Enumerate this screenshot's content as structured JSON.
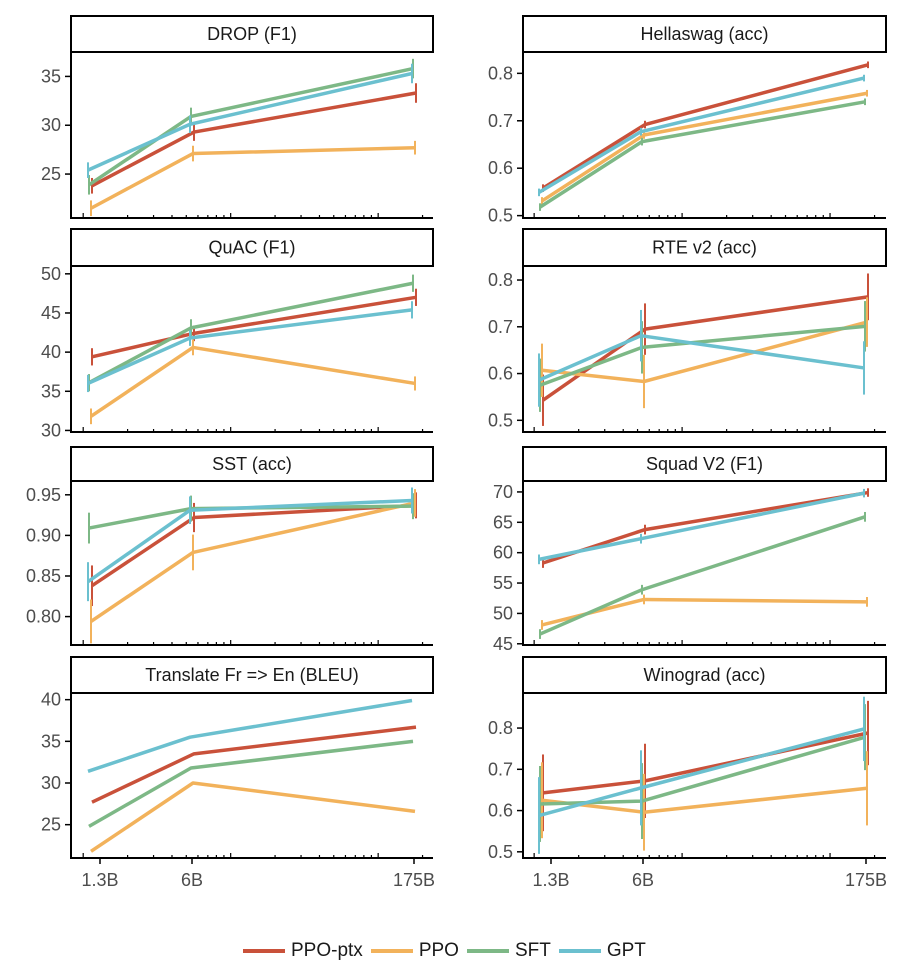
{
  "chart_data": {
    "type": "line",
    "layout": "facet-grid-4x2",
    "x_tick_labels": [
      "1.3B",
      "6B",
      "175B"
    ],
    "x_values": [
      1.3,
      6,
      175
    ],
    "x_scale": "log",
    "legend": {
      "position": "bottom",
      "entries": [
        {
          "name": "PPO-ptx",
          "color": "#c9513a"
        },
        {
          "name": "PPO",
          "color": "#f2b25b"
        },
        {
          "name": "SFT",
          "color": "#7db886"
        },
        {
          "name": "GPT",
          "color": "#6bc0cf"
        }
      ]
    },
    "panels": [
      {
        "title": "DROP (F1)",
        "ylim": [
          20.5,
          37.5
        ],
        "yticks": [
          25,
          30,
          35
        ],
        "ytick_labels": [
          "25",
          "30",
          "35"
        ],
        "series": [
          {
            "name": "PPO-ptx",
            "values": [
              23.8,
              29.3,
              33.3
            ],
            "err": [
              0.8,
              0.9,
              1.0
            ]
          },
          {
            "name": "PPO",
            "values": [
              21.5,
              27.1,
              27.7
            ],
            "err": [
              0.8,
              0.8,
              0.7
            ]
          },
          {
            "name": "SFT",
            "values": [
              23.9,
              30.9,
              35.8
            ],
            "err": [
              1.0,
              0.9,
              1.0
            ]
          },
          {
            "name": "GPT",
            "values": [
              25.4,
              30.1,
              35.3
            ],
            "err": [
              0.8,
              0.9,
              1.0
            ]
          }
        ]
      },
      {
        "title": "Hellaswag (acc)",
        "ylim": [
          0.495,
          0.845
        ],
        "yticks": [
          0.5,
          0.6,
          0.7,
          0.8
        ],
        "ytick_labels": [
          "0.5",
          "0.6",
          "0.7",
          "0.8"
        ],
        "series": [
          {
            "name": "PPO-ptx",
            "values": [
              0.558,
              0.692,
              0.818
            ],
            "err": [
              0.008,
              0.008,
              0.007
            ]
          },
          {
            "name": "PPO",
            "values": [
              0.531,
              0.67,
              0.758
            ],
            "err": [
              0.008,
              0.008,
              0.007
            ]
          },
          {
            "name": "SFT",
            "values": [
              0.518,
              0.656,
              0.74
            ],
            "err": [
              0.008,
              0.008,
              0.007
            ]
          },
          {
            "name": "GPT",
            "values": [
              0.549,
              0.677,
              0.79
            ],
            "err": [
              0.008,
              0.008,
              0.007
            ]
          }
        ]
      },
      {
        "title": "QuAC (F1)",
        "ylim": [
          29.8,
          51.0
        ],
        "yticks": [
          30,
          35,
          40,
          45,
          50
        ],
        "ytick_labels": [
          "30",
          "35",
          "40",
          "45",
          "50"
        ],
        "series": [
          {
            "name": "PPO-ptx",
            "values": [
              39.4,
              42.4,
              47.0
            ],
            "err": [
              1.1,
              1.0,
              1.1
            ]
          },
          {
            "name": "PPO",
            "values": [
              31.8,
              40.6,
              36.0
            ],
            "err": [
              1.0,
              1.0,
              0.9
            ]
          },
          {
            "name": "SFT",
            "values": [
              36.1,
              43.1,
              48.8
            ],
            "err": [
              1.1,
              1.1,
              1.1
            ]
          },
          {
            "name": "GPT",
            "values": [
              36.0,
              41.8,
              45.4
            ],
            "err": [
              1.1,
              1.0,
              1.1
            ]
          }
        ]
      },
      {
        "title": "RTE v2 (acc)",
        "ylim": [
          0.475,
          0.83
        ],
        "yticks": [
          0.5,
          0.6,
          0.7,
          0.8
        ],
        "ytick_labels": [
          "0.5",
          "0.6",
          "0.7",
          "0.8"
        ],
        "series": [
          {
            "name": "PPO-ptx",
            "values": [
              0.543,
              0.695,
              0.764
            ],
            "err": [
              0.055,
              0.055,
              0.05
            ]
          },
          {
            "name": "PPO",
            "values": [
              0.607,
              0.583,
              0.71
            ],
            "err": [
              0.057,
              0.057,
              0.053
            ]
          },
          {
            "name": "SFT",
            "values": [
              0.575,
              0.656,
              0.701
            ],
            "err": [
              0.057,
              0.056,
              0.054
            ]
          },
          {
            "name": "GPT",
            "values": [
              0.586,
              0.681,
              0.612
            ],
            "err": [
              0.057,
              0.055,
              0.057
            ]
          }
        ]
      },
      {
        "title": "SST (acc)",
        "ylim": [
          0.765,
          0.967
        ],
        "yticks": [
          0.8,
          0.85,
          0.9,
          0.95
        ],
        "ytick_labels": [
          "0.80",
          "0.85",
          "0.90",
          "0.95"
        ],
        "series": [
          {
            "name": "PPO-ptx",
            "values": [
              0.838,
              0.922,
              0.937
            ],
            "err": [
              0.025,
              0.018,
              0.016
            ]
          },
          {
            "name": "PPO",
            "values": [
              0.794,
              0.879,
              0.94
            ],
            "err": [
              0.027,
              0.022,
              0.017
            ]
          },
          {
            "name": "SFT",
            "values": [
              0.909,
              0.933,
              0.936
            ],
            "err": [
              0.019,
              0.016,
              0.016
            ]
          },
          {
            "name": "GPT",
            "values": [
              0.843,
              0.931,
              0.943
            ],
            "err": [
              0.024,
              0.017,
              0.016
            ]
          }
        ]
      },
      {
        "title": "Squad V2 (F1)",
        "ylim": [
          44.8,
          71.8
        ],
        "yticks": [
          45,
          50,
          55,
          60,
          65,
          70
        ],
        "ytick_labels": [
          "45",
          "50",
          "55",
          "60",
          "65",
          "70"
        ],
        "series": [
          {
            "name": "PPO-ptx",
            "values": [
              58.3,
              63.8,
              69.9
            ],
            "err": [
              0.8,
              0.8,
              0.7
            ]
          },
          {
            "name": "PPO",
            "values": [
              48.1,
              52.3,
              51.9
            ],
            "err": [
              0.8,
              0.8,
              0.8
            ]
          },
          {
            "name": "SFT",
            "values": [
              46.6,
              53.9,
              65.9
            ],
            "err": [
              0.8,
              0.8,
              0.8
            ]
          },
          {
            "name": "GPT",
            "values": [
              58.9,
              62.3,
              69.8
            ],
            "err": [
              0.8,
              0.8,
              0.7
            ]
          }
        ]
      },
      {
        "title": "Translate Fr => En (BLEU)",
        "ylim": [
          21.0,
          40.8
        ],
        "yticks": [
          25,
          30,
          35,
          40
        ],
        "ytick_labels": [
          "25",
          "30",
          "35",
          "40"
        ],
        "series": [
          {
            "name": "PPO-ptx",
            "values": [
              27.7,
              33.5,
              36.7
            ],
            "err": [
              0,
              0,
              0
            ]
          },
          {
            "name": "PPO",
            "values": [
              21.8,
              30.0,
              26.6
            ],
            "err": [
              0,
              0,
              0
            ]
          },
          {
            "name": "SFT",
            "values": [
              24.8,
              31.8,
              35.0
            ],
            "err": [
              0,
              0,
              0
            ]
          },
          {
            "name": "GPT",
            "values": [
              31.4,
              35.5,
              39.9
            ],
            "err": [
              0,
              0,
              0
            ]
          }
        ]
      },
      {
        "title": "Winograd (acc)",
        "ylim": [
          0.485,
          0.885
        ],
        "yticks": [
          0.5,
          0.6,
          0.7,
          0.8
        ],
        "ytick_labels": [
          "0.5",
          "0.6",
          "0.7",
          "0.8"
        ],
        "series": [
          {
            "name": "PPO-ptx",
            "values": [
              0.643,
              0.672,
              0.788
            ],
            "err": [
              0.093,
              0.09,
              0.078
            ]
          },
          {
            "name": "PPO",
            "values": [
              0.625,
              0.596,
              0.654
            ],
            "err": [
              0.092,
              0.093,
              0.09
            ]
          },
          {
            "name": "SFT",
            "values": [
              0.616,
              0.623,
              0.778
            ],
            "err": [
              0.092,
              0.092,
              0.08
            ]
          },
          {
            "name": "GPT",
            "values": [
              0.588,
              0.655,
              0.798
            ],
            "err": [
              0.093,
              0.091,
              0.078
            ]
          }
        ]
      }
    ]
  }
}
